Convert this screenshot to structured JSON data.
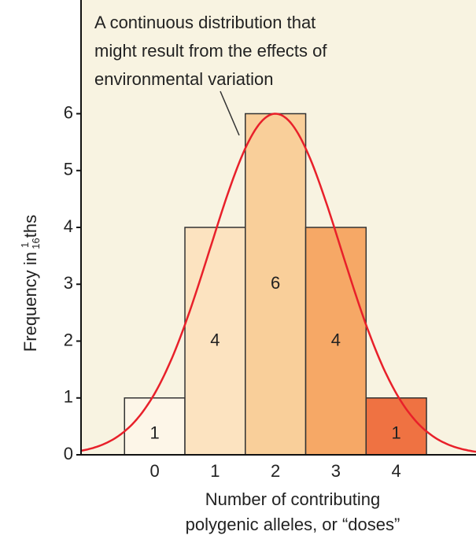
{
  "chart_data": {
    "type": "bar",
    "annotation": [
      "A continuous distribution that",
      "might result from the effects of",
      "environmental variation"
    ],
    "ylabel": {
      "text": "Frequency in",
      "numerator": "1",
      "denominator": "16",
      "suffix": "ths"
    },
    "xlabel": [
      "Number of contributing",
      "polygenic alleles, or “doses”"
    ],
    "x": [
      0,
      1,
      2,
      3,
      4
    ],
    "values": [
      1,
      4,
      6,
      4,
      1
    ],
    "colors": [
      "#fdf6e8",
      "#fce3c0",
      "#f9cf9a",
      "#f6a866",
      "#ef7242"
    ],
    "xlim": [
      -1.22,
      5.32
    ],
    "xticks": [
      0,
      1,
      2,
      3,
      4
    ],
    "ylim": [
      0,
      8
    ],
    "yticks": [
      0,
      1,
      2,
      3,
      4,
      5,
      6
    ],
    "curve": {
      "mean": 2,
      "sd": 1.08,
      "peak": 6,
      "color": "#e8202a"
    }
  }
}
